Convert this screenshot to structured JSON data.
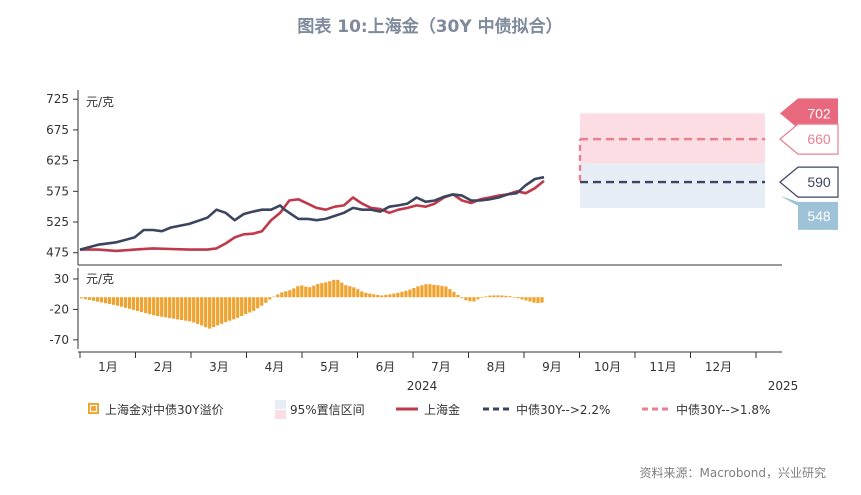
{
  "title": "图表 10:上海金（30Y 中债拟合）",
  "source": "资料来源：Macrobond，兴业研究",
  "colors": {
    "gold_line": "#c0394a",
    "bond_line": "#3b4560",
    "forecast_22": "#3b4560",
    "forecast_18": "#e8808f",
    "premium_bar": "#f0a22e",
    "ci_pink": "#fbdde3",
    "ci_blue": "#e6edf5",
    "tag_702": "#e8687e",
    "tag_660": "#e8808f",
    "tag_590": "#3b4560",
    "tag_548": "#9ec2d8"
  },
  "chart_data": [
    {
      "type": "line",
      "unit": "元/克",
      "ylim": [
        455,
        740
      ],
      "yticks": [
        725,
        675,
        625,
        575,
        525,
        475
      ],
      "xlim_days": [
        0,
        390
      ],
      "x_months": [
        "1月",
        "2月",
        "3月",
        "4月",
        "5月",
        "6月",
        "7月",
        "8月",
        "9月",
        "10月",
        "11月",
        "12月"
      ],
      "year_left": "2024",
      "year_right": "2025",
      "series": [
        {
          "name": "上海金",
          "x_day": [
            0,
            10,
            20,
            30,
            40,
            50,
            60,
            70,
            75,
            80,
            85,
            90,
            95,
            100,
            105,
            110,
            112,
            115,
            120,
            125,
            130,
            135,
            140,
            145,
            150,
            155,
            160,
            165,
            170,
            175,
            180,
            185,
            190,
            195,
            200,
            205,
            210,
            215,
            220,
            225,
            230,
            235,
            240,
            245,
            250,
            255
          ],
          "values": [
            480,
            480,
            478,
            480,
            482,
            481,
            480,
            480,
            482,
            490,
            500,
            505,
            506,
            510,
            528,
            540,
            548,
            560,
            562,
            555,
            548,
            545,
            550,
            552,
            565,
            555,
            548,
            546,
            540,
            545,
            548,
            552,
            550,
            555,
            565,
            570,
            560,
            556,
            562,
            565,
            568,
            570,
            575,
            572,
            580,
            592
          ]
        },
        {
          "name": "中债30Y-->2.2%",
          "x_day": [
            0,
            10,
            20,
            30,
            35,
            40,
            45,
            50,
            60,
            70,
            75,
            80,
            85,
            90,
            95,
            100,
            105,
            110,
            112,
            115,
            120,
            125,
            130,
            135,
            140,
            145,
            150,
            155,
            160,
            165,
            170,
            175,
            180,
            185,
            190,
            195,
            200,
            205,
            210,
            215,
            220,
            225,
            230,
            235,
            240,
            245,
            250,
            255
          ],
          "values": [
            480,
            488,
            492,
            500,
            512,
            512,
            510,
            516,
            522,
            532,
            545,
            540,
            528,
            538,
            542,
            545,
            545,
            552,
            546,
            540,
            530,
            530,
            528,
            530,
            535,
            540,
            548,
            545,
            545,
            542,
            550,
            552,
            555,
            565,
            558,
            560,
            566,
            570,
            568,
            560,
            560,
            562,
            565,
            570,
            572,
            585,
            595,
            598
          ]
        }
      ],
      "forecast": [
        {
          "name": "中债30Y-->2.2%",
          "value": 590
        },
        {
          "name": "中债30Y-->1.8%",
          "value": 660
        }
      ],
      "ci_label": "95%置信区间",
      "ci_bands": [
        {
          "low": 620,
          "high": 702
        },
        {
          "low": 548,
          "high": 620
        }
      ],
      "end_labels": [
        "702",
        "660",
        "590",
        "548"
      ]
    },
    {
      "type": "bar",
      "name": "上海金对中债30Y溢价",
      "unit": "元/克",
      "ylim": [
        -85,
        48
      ],
      "yticks": [
        30,
        -20,
        -70
      ],
      "x_day": [
        0,
        10,
        20,
        30,
        40,
        50,
        60,
        65,
        70,
        75,
        80,
        85,
        90,
        95,
        100,
        105,
        110,
        115,
        120,
        125,
        130,
        135,
        140,
        145,
        150,
        155,
        160,
        165,
        170,
        175,
        180,
        185,
        190,
        195,
        200,
        205,
        210,
        215,
        220,
        225,
        230,
        235,
        240,
        245,
        250,
        255
      ],
      "values": [
        -2,
        -8,
        -14,
        -22,
        -30,
        -35,
        -40,
        -45,
        -52,
        -46,
        -40,
        -35,
        -28,
        -22,
        -12,
        0,
        8,
        12,
        20,
        16,
        22,
        25,
        30,
        20,
        16,
        8,
        5,
        3,
        5,
        8,
        12,
        18,
        22,
        20,
        18,
        8,
        -4,
        -8,
        0,
        3,
        3,
        2,
        -2,
        -6,
        -10,
        -8
      ]
    }
  ]
}
